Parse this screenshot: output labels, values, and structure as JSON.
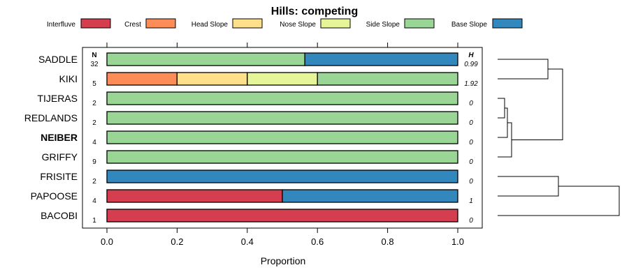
{
  "chart_data": {
    "type": "bar",
    "stacked": true,
    "orientation": "horizontal",
    "title": "Hills: competing",
    "xlabel": "Proportion",
    "xlim": [
      0,
      1
    ],
    "x_ticks": [
      "0.0",
      "0.2",
      "0.4",
      "0.6",
      "0.8",
      "1.0"
    ],
    "x_tick_values": [
      0,
      0.2,
      0.4,
      0.6,
      0.8,
      1.0
    ],
    "n_header": "N",
    "h_header": "H",
    "legend": [
      {
        "name": "Interfluve",
        "color": "#d53e4f"
      },
      {
        "name": "Crest",
        "color": "#fc8d59"
      },
      {
        "name": "Head Slope",
        "color": "#fee08b"
      },
      {
        "name": "Nose Slope",
        "color": "#e6f598"
      },
      {
        "name": "Side Slope",
        "color": "#99d594"
      },
      {
        "name": "Base Slope",
        "color": "#3288bd"
      }
    ],
    "rows": [
      {
        "label": "SADDLE",
        "n": "32",
        "h": "0.99",
        "bold": false,
        "segments": [
          {
            "class": "Side Slope",
            "value": 0.564
          },
          {
            "class": "Base Slope",
            "value": 0.436
          }
        ]
      },
      {
        "label": "KIKI",
        "n": "5",
        "h": "1.92",
        "bold": false,
        "segments": [
          {
            "class": "Crest",
            "value": 0.2
          },
          {
            "class": "Head Slope",
            "value": 0.2
          },
          {
            "class": "Nose Slope",
            "value": 0.2
          },
          {
            "class": "Side Slope",
            "value": 0.4
          }
        ]
      },
      {
        "label": "TIJERAS",
        "n": "2",
        "h": "0",
        "bold": false,
        "segments": [
          {
            "class": "Side Slope",
            "value": 1.0
          }
        ]
      },
      {
        "label": "REDLANDS",
        "n": "2",
        "h": "0",
        "bold": false,
        "segments": [
          {
            "class": "Side Slope",
            "value": 1.0
          }
        ]
      },
      {
        "label": "NEIBER",
        "n": "4",
        "h": "0",
        "bold": true,
        "segments": [
          {
            "class": "Side Slope",
            "value": 1.0
          }
        ]
      },
      {
        "label": "GRIFFY",
        "n": "9",
        "h": "0",
        "bold": false,
        "segments": [
          {
            "class": "Side Slope",
            "value": 1.0
          }
        ]
      },
      {
        "label": "FRISITE",
        "n": "2",
        "h": "0",
        "bold": false,
        "segments": [
          {
            "class": "Base Slope",
            "value": 1.0
          }
        ]
      },
      {
        "label": "PAPOOSE",
        "n": "4",
        "h": "1",
        "bold": false,
        "segments": [
          {
            "class": "Interfluve",
            "value": 0.5
          },
          {
            "class": "Base Slope",
            "value": 0.5
          }
        ]
      },
      {
        "label": "BACOBI",
        "n": "1",
        "h": "0",
        "bold": false,
        "segments": [
          {
            "class": "Interfluve",
            "value": 1.0
          }
        ]
      }
    ]
  }
}
